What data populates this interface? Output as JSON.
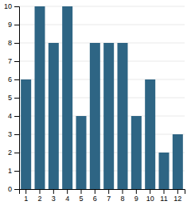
{
  "chart_data": {
    "type": "bar",
    "categories": [
      "1",
      "2",
      "3",
      "4",
      "5",
      "6",
      "7",
      "8",
      "9",
      "10",
      "11",
      "12"
    ],
    "values": [
      6,
      10,
      8,
      10,
      4,
      8,
      8,
      8,
      4,
      6,
      2,
      3
    ],
    "color": "#2e6584",
    "ylim": [
      0,
      10
    ],
    "yticks": [
      0,
      1,
      2,
      3,
      4,
      5,
      6,
      7,
      8,
      9,
      10
    ],
    "grid": true
  }
}
